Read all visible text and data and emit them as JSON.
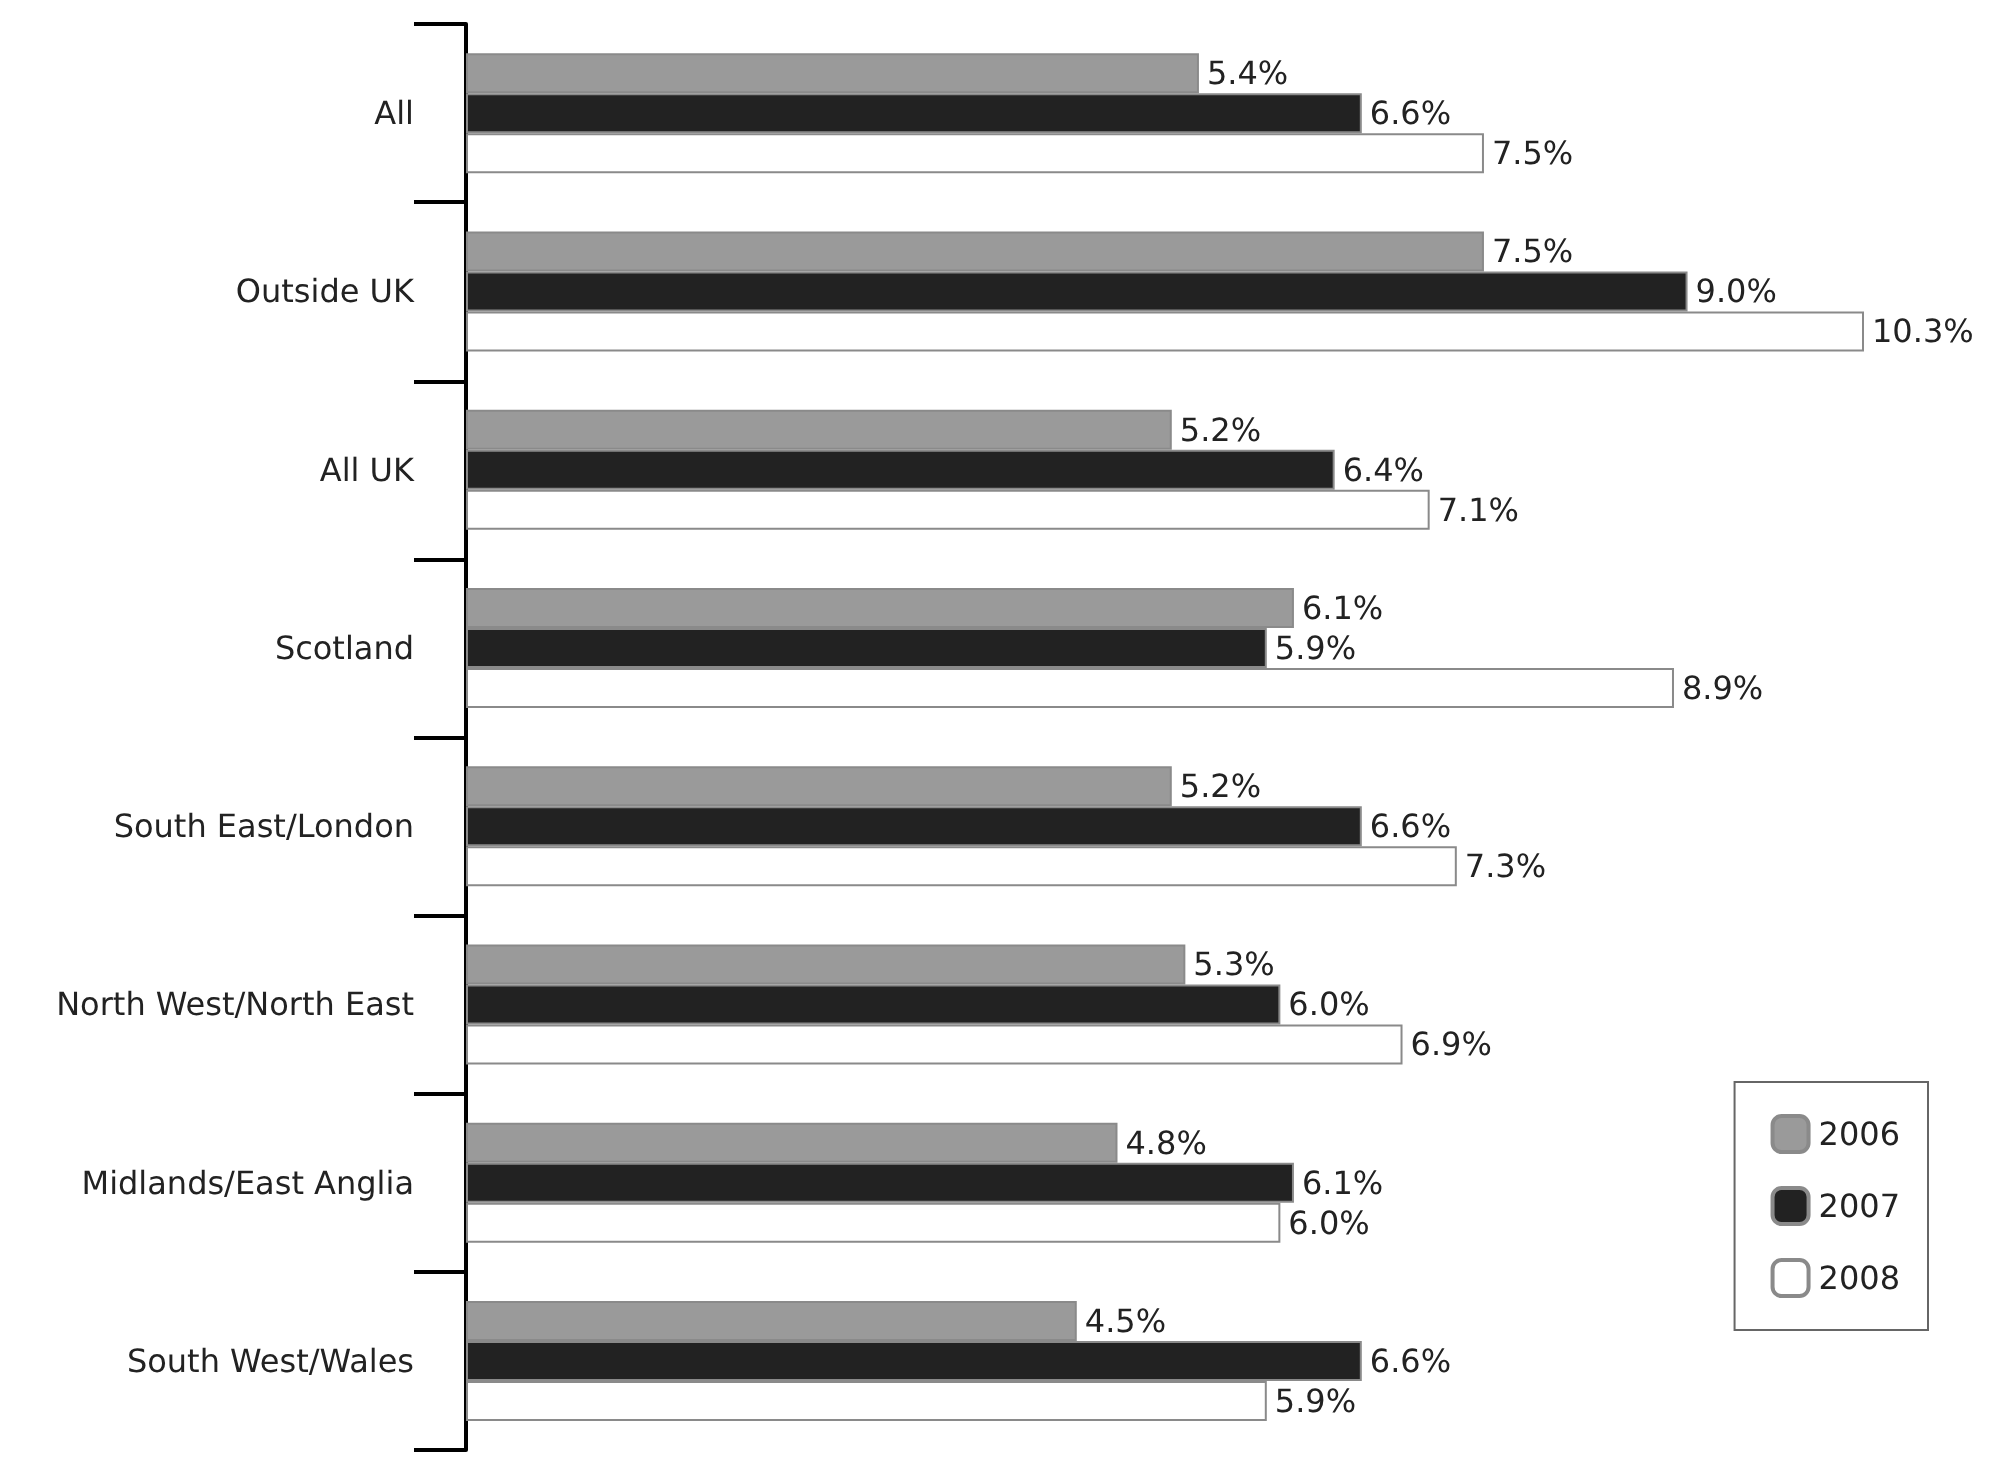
{
  "chart_data": {
    "type": "bar",
    "orientation": "horizontal",
    "categories": [
      "All",
      "Outside UK",
      "All UK",
      "Scotland",
      "South East/London",
      "North West/North East",
      "Midlands/East Anglia",
      "South West/Wales"
    ],
    "series": [
      {
        "name": "2006",
        "color": "#9a9a9a",
        "values": [
          5.4,
          7.5,
          5.2,
          6.1,
          5.2,
          5.3,
          4.8,
          4.5
        ],
        "value_labels": [
          "5.4%",
          "7.5%",
          "5.2%",
          "6.1%",
          "5.2%",
          "5.3%",
          "4.8%",
          "4.5%"
        ]
      },
      {
        "name": "2007",
        "color": "#222222",
        "values": [
          6.6,
          9.0,
          6.4,
          5.9,
          6.6,
          6.0,
          6.1,
          6.6
        ],
        "value_labels": [
          "6.6%",
          "9.0%",
          "6.4%",
          "5.9%",
          "6.6%",
          "6.0%",
          "6.1%",
          "6.6%"
        ]
      },
      {
        "name": "2008",
        "color": "#ffffff",
        "values": [
          7.5,
          10.3,
          7.1,
          8.9,
          7.3,
          6.9,
          6.0,
          5.9
        ],
        "value_labels": [
          "7.5%",
          "10.3%",
          "7.1%",
          "8.9%",
          "7.3%",
          "6.9%",
          "6.0%",
          "5.9%"
        ]
      }
    ],
    "legend": "bottom right"
  }
}
